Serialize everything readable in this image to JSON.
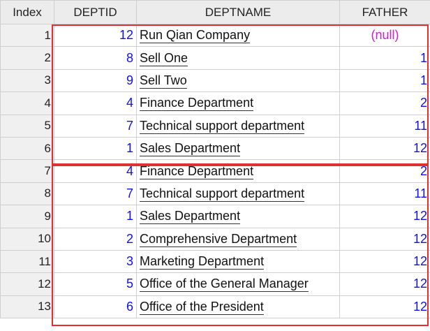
{
  "headers": [
    "Index",
    "DEPTID",
    "DEPTNAME",
    "FATHER"
  ],
  "rows": [
    {
      "index": "1",
      "deptid": "12",
      "deptname": "Run Qian Company",
      "father": "(null)",
      "father_null": true
    },
    {
      "index": "2",
      "deptid": "8",
      "deptname": "Sell One",
      "father": "1"
    },
    {
      "index": "3",
      "deptid": "9",
      "deptname": "Sell Two",
      "father": "1"
    },
    {
      "index": "4",
      "deptid": "4",
      "deptname": "Finance Department",
      "father": "2"
    },
    {
      "index": "5",
      "deptid": "7",
      "deptname": "Technical support department",
      "father": "11"
    },
    {
      "index": "6",
      "deptid": "1",
      "deptname": "Sales Department",
      "father": "12"
    },
    {
      "index": "7",
      "deptid": "4",
      "deptname": "Finance Department",
      "father": "2"
    },
    {
      "index": "8",
      "deptid": "7",
      "deptname": "Technical support department",
      "father": "11"
    },
    {
      "index": "9",
      "deptid": "1",
      "deptname": "Sales Department",
      "father": "12"
    },
    {
      "index": "10",
      "deptid": "2",
      "deptname": "Comprehensive Department",
      "father": "12"
    },
    {
      "index": "11",
      "deptid": "3",
      "deptname": "Marketing Department",
      "father": "12"
    },
    {
      "index": "12",
      "deptid": "5",
      "deptname": "Office of the General Manager",
      "father": "12"
    },
    {
      "index": "13",
      "deptid": "6",
      "deptname": "Office of the President",
      "father": "12"
    }
  ],
  "colors": {
    "number": "#1010ee",
    "null": "#e010e0",
    "highlight_box": "#e03030"
  }
}
